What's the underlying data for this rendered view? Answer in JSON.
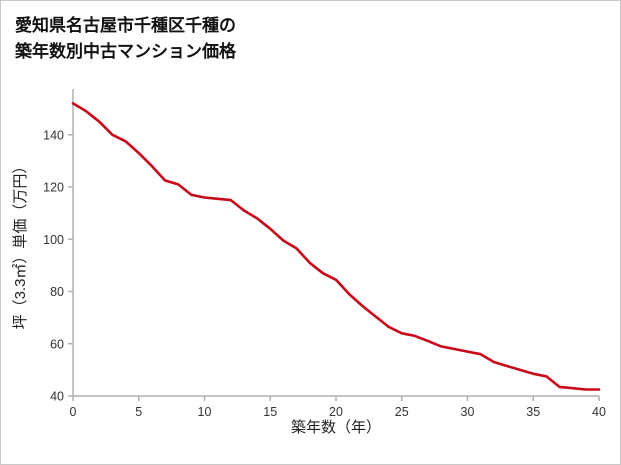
{
  "title": {
    "line1": "愛知県名古屋市千種区千種の",
    "line2": "築年数別中古マンション価格"
  },
  "chart_data": {
    "type": "line",
    "title": "愛知県名古屋市千種区千種の築年数別中古マンション価格",
    "xlabel": "築年数（年）",
    "ylabel": "坪（3.3㎡）単価（万円）",
    "x": [
      0,
      1,
      2,
      3,
      4,
      5,
      6,
      7,
      8,
      9,
      10,
      11,
      12,
      13,
      14,
      15,
      16,
      17,
      18,
      19,
      20,
      21,
      22,
      23,
      24,
      25,
      26,
      27,
      28,
      29,
      30,
      31,
      32,
      33,
      34,
      35,
      36,
      37,
      38,
      39,
      40
    ],
    "values": [
      152,
      149,
      145,
      140,
      137.5,
      133,
      128,
      122.5,
      121,
      117,
      116,
      115.5,
      115,
      111,
      108,
      104,
      99.5,
      96.5,
      91,
      87,
      84.5,
      79,
      74.5,
      70.5,
      66.5,
      64,
      63,
      61,
      59,
      58,
      57,
      56,
      53,
      51.5,
      50,
      48.5,
      47.5,
      43.5,
      43,
      42.5,
      42.5
    ],
    "x_ticks": [
      0,
      5,
      10,
      15,
      20,
      25,
      30,
      35,
      40
    ],
    "y_ticks": [
      40,
      60,
      80,
      100,
      120,
      140
    ],
    "xlim": [
      0,
      40
    ],
    "ylim": [
      40,
      156
    ],
    "grid": false,
    "legend": "none",
    "line_color": "#c9081a",
    "axis_color": "#b0b0b0",
    "tick_label_color": "#333333"
  }
}
